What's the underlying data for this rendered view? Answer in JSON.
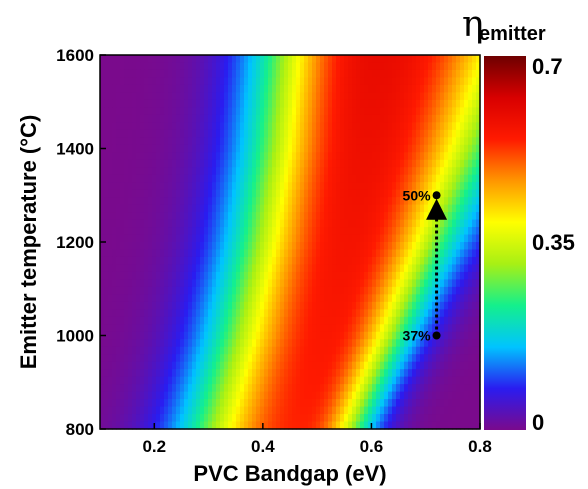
{
  "chart_data": {
    "type": "heatmap",
    "title": "",
    "xlabel": "PVC Bandgap (eV)",
    "ylabel": "Emitter temperature (°C)",
    "xlim": [
      0.1,
      0.8
    ],
    "ylim": [
      800,
      1600
    ],
    "x_ticks": [
      "0.2",
      "0.4",
      "0.6",
      "0.8"
    ],
    "y_ticks": [
      "800",
      "1000",
      "1200",
      "1400",
      "1600"
    ],
    "colorbar": {
      "title": "η",
      "title_subscript": "emitter",
      "range": [
        0,
        0.7
      ],
      "tick_labels": [
        "0",
        "0.35",
        "0.7"
      ],
      "colormap": [
        "#7a0a8c",
        "#2a1cf0",
        "#00c4ff",
        "#14f08c",
        "#a8f014",
        "#ffff00",
        "#ff9600",
        "#ff1a00",
        "#d80000",
        "#6e0000"
      ]
    },
    "ridge_samples": {
      "temperature_C": [
        800,
        1000,
        1200,
        1400,
        1600
      ],
      "optimal_bandgap_eV": [
        0.47,
        0.52,
        0.56,
        0.59,
        0.61
      ]
    },
    "annotations": [
      {
        "text": "37%",
        "x": 0.72,
        "y": 1000
      },
      {
        "text": "50%",
        "x": 0.72,
        "y": 1300
      }
    ]
  }
}
